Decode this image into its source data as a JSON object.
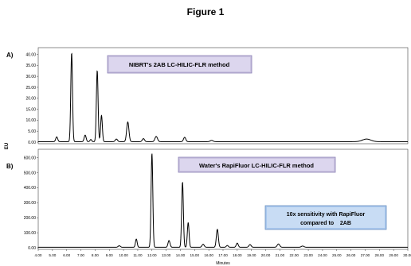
{
  "figure_title": "Figure 1",
  "y_axis_label": "EU",
  "x_axis_label": "Minutes",
  "chart_data": [
    {
      "type": "line",
      "panel_label": "A)",
      "annotation": "NIBRT's 2AB LC-HILIC-FLR  method",
      "ylim": [
        0,
        42
      ],
      "xlim": [
        4.0,
        30.0
      ],
      "yticks": [
        "40.00",
        "35.00",
        "30.00",
        "25.00",
        "20.00",
        "15.00",
        "10.00",
        "5.00",
        "0.00"
      ],
      "ytick_values": [
        40,
        35,
        30,
        25,
        20,
        15,
        10,
        5,
        0
      ],
      "baseline": 0.2,
      "peaks": [
        {
          "x": 5.3,
          "y": 2.2,
          "w": 0.07
        },
        {
          "x": 6.35,
          "y": 40.5,
          "w": 0.06
        },
        {
          "x": 7.3,
          "y": 3.0,
          "w": 0.07
        },
        {
          "x": 7.7,
          "y": 1.0,
          "w": 0.06
        },
        {
          "x": 8.15,
          "y": 32.5,
          "w": 0.06
        },
        {
          "x": 8.45,
          "y": 12.0,
          "w": 0.06
        },
        {
          "x": 9.5,
          "y": 1.2,
          "w": 0.08
        },
        {
          "x": 10.3,
          "y": 9.0,
          "w": 0.08
        },
        {
          "x": 11.4,
          "y": 1.4,
          "w": 0.08
        },
        {
          "x": 12.3,
          "y": 2.4,
          "w": 0.09
        },
        {
          "x": 14.3,
          "y": 2.0,
          "w": 0.08
        },
        {
          "x": 16.2,
          "y": 0.6,
          "w": 0.1
        },
        {
          "x": 27.1,
          "y": 1.2,
          "w": 0.3
        }
      ]
    },
    {
      "type": "line",
      "panel_label": "B)",
      "annotation": "Water's RapiFluor  LC-HILIC-FLR method",
      "note_line1": "10x sensitivity with RapiFluor",
      "note_line2": "compared to    2AB",
      "ylim": [
        0,
        640
      ],
      "xlim": [
        4.0,
        30.0
      ],
      "yticks": [
        "600.00",
        "500.00",
        "400.00",
        "300.00",
        "200.00",
        "100.00",
        "0.00"
      ],
      "ytick_values": [
        600,
        500,
        400,
        300,
        200,
        100,
        0
      ],
      "xticks": [
        "4.00",
        "5.00",
        "6.00",
        "7.00",
        "8.00",
        "9.00",
        "10.00",
        "11.00",
        "12.00",
        "13.00",
        "14.00",
        "15.00",
        "16.00",
        "17.00",
        "18.00",
        "19.00",
        "20.00",
        "21.00",
        "22.00",
        "23.00",
        "24.00",
        "25.00",
        "26.00",
        "27.00",
        "28.00",
        "29.00",
        "30.00"
      ],
      "xtick_values": [
        4,
        5,
        6,
        7,
        8,
        9,
        10,
        11,
        12,
        13,
        14,
        15,
        16,
        17,
        18,
        19,
        20,
        21,
        22,
        23,
        24,
        25,
        26,
        27,
        28,
        29,
        30
      ],
      "baseline": 3,
      "peaks": [
        {
          "x": 9.7,
          "y": 10,
          "w": 0.08
        },
        {
          "x": 10.9,
          "y": 55,
          "w": 0.06
        },
        {
          "x": 12.0,
          "y": 625,
          "w": 0.06
        },
        {
          "x": 13.2,
          "y": 45,
          "w": 0.07
        },
        {
          "x": 14.15,
          "y": 435,
          "w": 0.06
        },
        {
          "x": 14.55,
          "y": 165,
          "w": 0.06
        },
        {
          "x": 15.6,
          "y": 20,
          "w": 0.08
        },
        {
          "x": 16.6,
          "y": 120,
          "w": 0.07
        },
        {
          "x": 17.3,
          "y": 12,
          "w": 0.07
        },
        {
          "x": 18.0,
          "y": 28,
          "w": 0.07
        },
        {
          "x": 18.9,
          "y": 18,
          "w": 0.08
        },
        {
          "x": 20.9,
          "y": 22,
          "w": 0.09
        },
        {
          "x": 22.6,
          "y": 8,
          "w": 0.1
        }
      ]
    }
  ]
}
